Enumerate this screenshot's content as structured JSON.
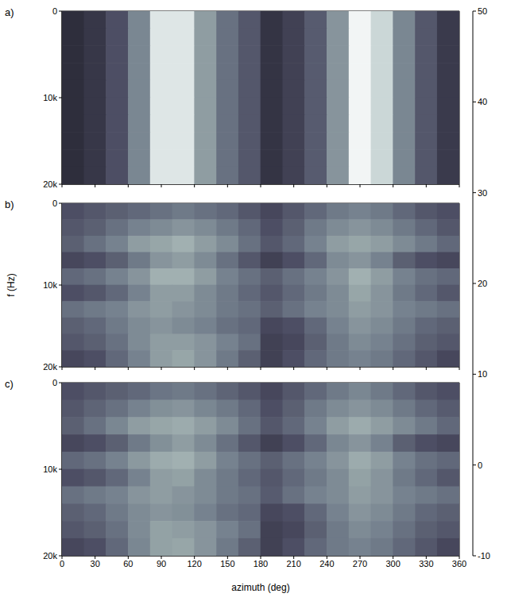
{
  "chart_data": [
    {
      "type": "heatmap",
      "title": "a)",
      "xlim": [
        0,
        360
      ],
      "xticks": [
        0,
        30,
        60,
        90,
        120,
        150,
        180,
        210,
        240,
        270,
        300,
        330,
        360
      ],
      "ylim": [
        0,
        20000
      ],
      "yticks": [
        0,
        {
          "value": 10000,
          "label": "10k"
        },
        {
          "value": 20000,
          "label": "20k"
        }
      ],
      "tick_labels": "y",
      "vlines": [
        180
      ],
      "x": [
        10,
        30,
        50,
        70,
        90,
        110,
        130,
        150,
        170,
        190,
        210,
        230,
        250,
        270,
        290,
        310,
        330,
        350
      ],
      "y": [
        1000,
        3000,
        5000,
        7000,
        9000,
        11000,
        13000,
        15000,
        17000,
        19000
      ],
      "cells": [
        [
          2,
          5,
          12,
          25,
          45,
          45,
          30,
          20,
          14,
          4,
          8,
          15,
          28,
          48,
          42,
          25,
          14,
          6
        ],
        [
          2,
          5,
          12,
          25,
          45,
          45,
          30,
          20,
          14,
          4,
          8,
          15,
          28,
          48,
          42,
          25,
          14,
          6
        ],
        [
          2,
          5,
          12,
          25,
          45,
          45,
          30,
          20,
          14,
          4,
          8,
          15,
          28,
          48,
          42,
          25,
          14,
          6
        ],
        [
          2,
          5,
          12,
          25,
          45,
          45,
          30,
          20,
          14,
          4,
          8,
          15,
          28,
          48,
          42,
          25,
          14,
          6
        ],
        [
          2,
          5,
          12,
          25,
          45,
          45,
          30,
          20,
          14,
          4,
          8,
          15,
          28,
          48,
          42,
          25,
          14,
          6
        ],
        [
          2,
          5,
          12,
          25,
          45,
          45,
          30,
          20,
          14,
          4,
          8,
          15,
          28,
          48,
          42,
          25,
          14,
          6
        ],
        [
          2,
          5,
          12,
          25,
          45,
          45,
          30,
          20,
          14,
          4,
          8,
          15,
          28,
          48,
          42,
          25,
          14,
          6
        ],
        [
          2,
          5,
          12,
          25,
          45,
          45,
          30,
          20,
          14,
          4,
          8,
          15,
          28,
          48,
          42,
          25,
          14,
          6
        ],
        [
          2,
          5,
          12,
          25,
          45,
          45,
          30,
          20,
          14,
          4,
          8,
          15,
          28,
          48,
          42,
          25,
          14,
          6
        ],
        [
          2,
          5,
          12,
          25,
          45,
          45,
          30,
          20,
          14,
          4,
          8,
          15,
          28,
          48,
          42,
          25,
          14,
          6
        ]
      ]
    },
    {
      "type": "heatmap",
      "title": "b)",
      "ylabel": "f (Hz)",
      "xlim": [
        0,
        360
      ],
      "xticks": [
        0,
        30,
        60,
        90,
        120,
        150,
        180,
        210,
        240,
        270,
        300,
        330,
        360
      ],
      "ylim": [
        0,
        20000
      ],
      "yticks": [
        0,
        {
          "value": 10000,
          "label": "10k"
        },
        {
          "value": 20000,
          "label": "20k"
        }
      ],
      "tick_labels": "y",
      "x": [
        10,
        30,
        50,
        70,
        90,
        110,
        130,
        150,
        170,
        190,
        210,
        230,
        250,
        270,
        290,
        310,
        330,
        350
      ],
      "y": [
        1000,
        3000,
        5000,
        7000,
        9000,
        11000,
        13000,
        15000,
        17000,
        19000
      ],
      "cells": [
        [
          12,
          14,
          16,
          18,
          20,
          22,
          20,
          18,
          14,
          10,
          14,
          18,
          22,
          24,
          22,
          18,
          14,
          12
        ],
        [
          14,
          16,
          20,
          24,
          26,
          28,
          26,
          22,
          18,
          12,
          16,
          22,
          26,
          28,
          26,
          22,
          18,
          14
        ],
        [
          16,
          20,
          24,
          30,
          32,
          34,
          30,
          26,
          20,
          14,
          18,
          24,
          30,
          32,
          30,
          26,
          22,
          18
        ],
        [
          10,
          12,
          16,
          22,
          28,
          30,
          26,
          20,
          14,
          8,
          12,
          18,
          26,
          28,
          24,
          16,
          12,
          10
        ],
        [
          18,
          20,
          24,
          28,
          34,
          34,
          30,
          24,
          20,
          16,
          20,
          24,
          28,
          34,
          30,
          24,
          20,
          18
        ],
        [
          12,
          14,
          18,
          24,
          30,
          30,
          26,
          22,
          18,
          14,
          18,
          22,
          26,
          32,
          28,
          22,
          18,
          14
        ],
        [
          20,
          22,
          24,
          28,
          30,
          28,
          26,
          22,
          20,
          16,
          20,
          24,
          26,
          30,
          28,
          24,
          22,
          20
        ],
        [
          16,
          18,
          22,
          26,
          28,
          26,
          24,
          20,
          18,
          10,
          12,
          18,
          24,
          28,
          26,
          22,
          18,
          16
        ],
        [
          14,
          16,
          20,
          26,
          30,
          30,
          28,
          24,
          20,
          8,
          10,
          16,
          22,
          26,
          24,
          20,
          16,
          14
        ],
        [
          10,
          12,
          18,
          24,
          30,
          32,
          28,
          22,
          16,
          8,
          12,
          18,
          22,
          24,
          22,
          18,
          14,
          10
        ]
      ]
    },
    {
      "type": "heatmap",
      "title": "c)",
      "xlabel": "azimuth (deg)",
      "xlim": [
        0,
        360
      ],
      "xticks": [
        0,
        30,
        60,
        90,
        120,
        150,
        180,
        210,
        240,
        270,
        300,
        330,
        360
      ],
      "ylim": [
        0,
        20000
      ],
      "yticks": [
        0,
        {
          "value": 10000,
          "label": "10k"
        },
        {
          "value": 20000,
          "label": "20k"
        }
      ],
      "x": [
        10,
        30,
        50,
        70,
        90,
        110,
        130,
        150,
        170,
        190,
        210,
        230,
        250,
        270,
        290,
        310,
        330,
        350
      ],
      "y": [
        1000,
        3000,
        5000,
        7000,
        9000,
        11000,
        13000,
        15000,
        17000,
        19000
      ],
      "cells": [
        [
          12,
          14,
          16,
          18,
          21,
          22,
          20,
          17,
          14,
          10,
          14,
          18,
          22,
          25,
          22,
          18,
          14,
          12
        ],
        [
          14,
          17,
          20,
          24,
          27,
          28,
          25,
          22,
          18,
          12,
          16,
          22,
          26,
          28,
          26,
          22,
          18,
          15
        ],
        [
          16,
          20,
          25,
          30,
          32,
          33,
          30,
          26,
          20,
          14,
          18,
          24,
          30,
          33,
          30,
          26,
          22,
          18
        ],
        [
          10,
          12,
          16,
          22,
          27,
          30,
          26,
          20,
          14,
          8,
          12,
          18,
          25,
          28,
          24,
          16,
          12,
          10
        ],
        [
          18,
          20,
          24,
          29,
          33,
          34,
          30,
          24,
          20,
          16,
          20,
          24,
          28,
          33,
          30,
          24,
          20,
          18
        ],
        [
          12,
          14,
          18,
          24,
          30,
          31,
          26,
          22,
          18,
          14,
          18,
          22,
          26,
          31,
          28,
          22,
          18,
          14
        ],
        [
          20,
          22,
          24,
          28,
          30,
          28,
          26,
          22,
          20,
          15,
          20,
          24,
          26,
          30,
          28,
          24,
          22,
          20
        ],
        [
          16,
          18,
          22,
          26,
          28,
          27,
          24,
          20,
          18,
          10,
          12,
          18,
          24,
          28,
          26,
          22,
          18,
          16
        ],
        [
          14,
          16,
          20,
          26,
          31,
          30,
          28,
          24,
          20,
          8,
          10,
          16,
          22,
          26,
          24,
          20,
          16,
          14
        ],
        [
          10,
          12,
          18,
          25,
          31,
          32,
          28,
          22,
          16,
          8,
          12,
          18,
          22,
          24,
          22,
          18,
          14,
          10
        ]
      ]
    },
    {
      "type": "colorbar",
      "ylim": [
        -10,
        50
      ],
      "yticks": [
        -10,
        0,
        10,
        20,
        30,
        40,
        50
      ]
    }
  ]
}
